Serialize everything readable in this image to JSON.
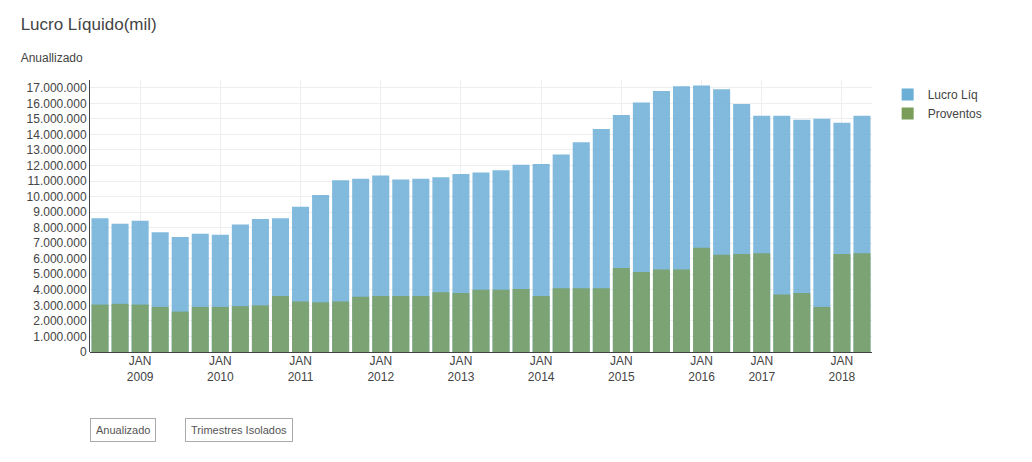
{
  "chart_data": {
    "type": "bar",
    "title": "Lucro Líquido(mil)",
    "subtitle": "Anuallizado",
    "categories": [
      null,
      null,
      "JAN\n2009",
      null,
      null,
      null,
      "JAN\n2010",
      null,
      null,
      null,
      "JAN\n2011",
      null,
      null,
      null,
      "JAN\n2012",
      null,
      null,
      null,
      "JAN\n2013",
      null,
      null,
      null,
      "JAN\n2014",
      null,
      null,
      null,
      "JAN\n2015",
      null,
      null,
      null,
      "JAN\n2016",
      null,
      null,
      "JAN\n2017",
      null,
      null,
      null,
      "JAN\n2018",
      null
    ],
    "series": [
      {
        "name": "Lucro Líq",
        "color": "#6baed6",
        "values": [
          8600000,
          8250000,
          8450000,
          7700000,
          7400000,
          7600000,
          7550000,
          8200000,
          8550000,
          8600000,
          9350000,
          10100000,
          11050000,
          11150000,
          11350000,
          11100000,
          11150000,
          11250000,
          11450000,
          11550000,
          11700000,
          12050000,
          12100000,
          12700000,
          13500000,
          14350000,
          15250000,
          16050000,
          16800000,
          17100000,
          17150000,
          16900000,
          15950000,
          15200000,
          15200000,
          14950000,
          15000000,
          14750000,
          15200000
        ]
      },
      {
        "name": "Proventos",
        "color": "#7a9e5a",
        "values": [
          3050000,
          3100000,
          3050000,
          2900000,
          2600000,
          2900000,
          2900000,
          2950000,
          3000000,
          3600000,
          3250000,
          3200000,
          3250000,
          3550000,
          3600000,
          3600000,
          3600000,
          3850000,
          3800000,
          4000000,
          4000000,
          4050000,
          3600000,
          4100000,
          4100000,
          4100000,
          5400000,
          5150000,
          5300000,
          5300000,
          6700000,
          6250000,
          6300000,
          6350000,
          3700000,
          3800000,
          2900000,
          6300000,
          6350000
        ]
      }
    ],
    "ylim": [
      0,
      17500000
    ],
    "yticks": [
      0,
      {
        "value": 1000000,
        "label": "1.000.000"
      },
      {
        "value": 2000000,
        "label": "2.000.000"
      },
      {
        "value": 3000000,
        "label": "3.000.000"
      },
      {
        "value": 4000000,
        "label": "4.000.000"
      },
      {
        "value": 5000000,
        "label": "5.000.000"
      },
      {
        "value": 6000000,
        "label": "6.000.000"
      },
      {
        "value": 7000000,
        "label": "7.000.000"
      },
      {
        "value": 8000000,
        "label": "8.000.000"
      },
      {
        "value": 9000000,
        "label": "9.000.000"
      },
      {
        "value": 10000000,
        "label": "10.000.000"
      },
      {
        "value": 11000000,
        "label": "11.000.000"
      },
      {
        "value": 12000000,
        "label": "12.000.000"
      },
      {
        "value": 13000000,
        "label": "13.000.000"
      },
      {
        "value": 14000000,
        "label": "14.000.000"
      },
      {
        "value": 15000000,
        "label": "15.000.000"
      },
      {
        "value": 16000000,
        "label": "16.000.000"
      },
      {
        "value": 17000000,
        "label": "17.000.000"
      }
    ],
    "grid": true,
    "legend": "upper right",
    "stacked": false,
    "annotations": [
      "Anualizado",
      "Trimestres Isolados"
    ]
  }
}
